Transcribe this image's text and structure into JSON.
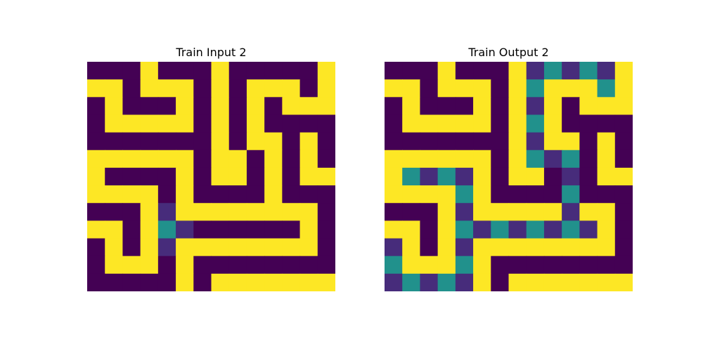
{
  "palette": {
    "0": "#440154",
    "1": "#fde725",
    "2": "#21918c",
    "3": "#472c7b"
  },
  "panels": [
    {
      "title": "Train Input 2",
      "grid": [
        [
          0,
          0,
          0,
          1,
          0,
          0,
          0,
          1,
          0,
          0,
          0,
          0,
          0,
          1
        ],
        [
          1,
          1,
          0,
          1,
          1,
          1,
          0,
          1,
          0,
          1,
          1,
          1,
          0,
          1
        ],
        [
          0,
          1,
          0,
          0,
          0,
          1,
          0,
          1,
          0,
          1,
          0,
          1,
          1,
          1
        ],
        [
          0,
          1,
          1,
          1,
          1,
          1,
          0,
          1,
          0,
          1,
          0,
          0,
          0,
          0
        ],
        [
          0,
          0,
          0,
          0,
          0,
          0,
          0,
          1,
          0,
          1,
          1,
          0,
          1,
          0
        ],
        [
          1,
          1,
          1,
          1,
          1,
          1,
          0,
          1,
          1,
          0,
          1,
          0,
          1,
          0
        ],
        [
          1,
          0,
          0,
          0,
          0,
          1,
          0,
          1,
          1,
          0,
          1,
          0,
          1,
          1
        ],
        [
          1,
          1,
          1,
          1,
          0,
          1,
          0,
          0,
          0,
          0,
          1,
          0,
          0,
          0
        ],
        [
          0,
          0,
          0,
          1,
          3,
          1,
          1,
          1,
          1,
          1,
          1,
          1,
          1,
          0
        ],
        [
          1,
          1,
          0,
          1,
          2,
          3,
          0,
          0,
          0,
          0,
          0,
          0,
          1,
          0
        ],
        [
          0,
          1,
          0,
          1,
          3,
          1,
          1,
          1,
          1,
          1,
          1,
          1,
          1,
          0
        ],
        [
          0,
          1,
          1,
          1,
          0,
          1,
          0,
          0,
          0,
          0,
          0,
          0,
          0,
          0
        ],
        [
          0,
          0,
          0,
          0,
          0,
          1,
          0,
          1,
          1,
          1,
          1,
          1,
          1,
          1
        ]
      ]
    },
    {
      "title": "Train Output 2",
      "grid": [
        [
          0,
          0,
          0,
          1,
          0,
          0,
          0,
          1,
          3,
          2,
          3,
          2,
          3,
          1
        ],
        [
          1,
          1,
          0,
          1,
          1,
          1,
          0,
          1,
          2,
          1,
          1,
          1,
          2,
          1
        ],
        [
          0,
          1,
          0,
          0,
          0,
          1,
          0,
          1,
          3,
          1,
          0,
          1,
          1,
          1
        ],
        [
          0,
          1,
          1,
          1,
          1,
          1,
          0,
          1,
          2,
          1,
          0,
          0,
          0,
          0
        ],
        [
          0,
          0,
          0,
          0,
          0,
          0,
          0,
          1,
          3,
          1,
          1,
          0,
          1,
          0
        ],
        [
          1,
          1,
          1,
          1,
          1,
          1,
          0,
          1,
          2,
          3,
          2,
          0,
          1,
          0
        ],
        [
          1,
          2,
          3,
          2,
          3,
          1,
          0,
          1,
          1,
          0,
          3,
          0,
          1,
          1
        ],
        [
          1,
          1,
          1,
          1,
          2,
          1,
          0,
          0,
          0,
          0,
          2,
          0,
          0,
          0
        ],
        [
          0,
          0,
          0,
          1,
          3,
          1,
          1,
          1,
          1,
          1,
          3,
          1,
          1,
          0
        ],
        [
          1,
          1,
          0,
          1,
          2,
          3,
          2,
          3,
          2,
          3,
          2,
          3,
          1,
          0
        ],
        [
          3,
          1,
          0,
          1,
          3,
          1,
          1,
          1,
          1,
          1,
          1,
          1,
          1,
          0
        ],
        [
          2,
          1,
          1,
          1,
          2,
          1,
          0,
          0,
          0,
          0,
          0,
          0,
          0,
          0
        ],
        [
          3,
          2,
          3,
          2,
          3,
          1,
          0,
          1,
          1,
          1,
          1,
          1,
          1,
          1
        ]
      ]
    }
  ]
}
